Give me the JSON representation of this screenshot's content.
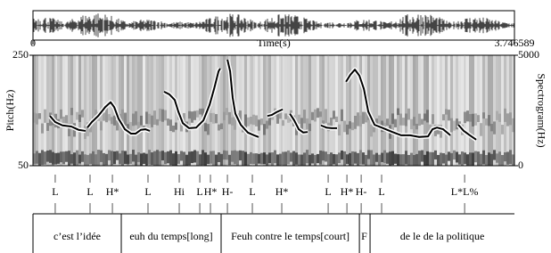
{
  "chart_data": {
    "type": "line",
    "xlabel": "Time(s)",
    "ylabel": "Pitch(Hz)",
    "y2label": "Spectrogram(Hz)",
    "xlim": [
      0,
      3.746589
    ],
    "xticks": [
      0,
      3.746589
    ],
    "ylim": [
      50,
      250
    ],
    "yticks": [
      50,
      250
    ],
    "y2lim": [
      0,
      5000
    ],
    "y2ticks": [
      0,
      5000
    ],
    "color": "#000000",
    "x": [
      0.132,
      0.173,
      0.229,
      0.298,
      0.354,
      0.409,
      null,
      0.423,
      0.458,
      0.507,
      0.562,
      0.604,
      0.632,
      0.666,
      0.715,
      0.763,
      0.798,
      0.84,
      0.874,
      0.909,
      null,
      1.02,
      1.062,
      1.103,
      1.131,
      1.166,
      1.214,
      1.27,
      1.326,
      1.374,
      1.409,
      1.444,
      1.457,
      null,
      1.513,
      1.534,
      1.554,
      1.575,
      1.617,
      1.672,
      1.721,
      1.756,
      null,
      1.825,
      1.86,
      1.895,
      1.943,
      null,
      1.999,
      2.033,
      2.068,
      2.103,
      2.137,
      null,
      2.241,
      2.283,
      2.325,
      2.366,
      null,
      2.436,
      2.471,
      2.505,
      2.54,
      2.575,
      2.609,
      2.658,
      2.713,
      2.797,
      2.866,
      2.935,
      3.005,
      3.074,
      3.109,
      3.144,
      3.192,
      3.248,
      null,
      3.31,
      3.352,
      3.4,
      3.449
    ],
    "values": [
      140,
      129,
      123,
      121,
      115,
      113,
      null,
      119,
      129,
      140,
      156,
      165,
      156,
      135,
      116,
      108,
      108,
      115,
      116,
      113,
      null,
      184,
      179,
      169,
      148,
      127,
      118,
      119,
      132,
      160,
      189,
      221,
      226,
      null,
      242,
      221,
      173,
      144,
      124,
      110,
      105,
      102,
      null,
      140,
      142,
      147,
      152,
      null,
      144,
      132,
      116,
      110,
      111,
      null,
      123,
      119,
      118,
      118,
      null,
      202,
      215,
      224,
      213,
      189,
      148,
      124,
      119,
      111,
      105,
      105,
      102,
      103,
      116,
      119,
      116,
      105,
      null,
      124,
      113,
      105,
      97
    ],
    "tones": [
      {
        "time": 0.173,
        "label": "L"
      },
      {
        "time": 0.444,
        "label": "L"
      },
      {
        "time": 0.618,
        "label": "H*"
      },
      {
        "time": 0.895,
        "label": "L"
      },
      {
        "time": 1.138,
        "label": "Hi"
      },
      {
        "time": 1.298,
        "label": "L"
      },
      {
        "time": 1.381,
        "label": "H*"
      },
      {
        "time": 1.513,
        "label": "H-"
      },
      {
        "time": 1.707,
        "label": "L"
      },
      {
        "time": 1.936,
        "label": "H*"
      },
      {
        "time": 2.297,
        "label": "L"
      },
      {
        "time": 2.443,
        "label": "H*"
      },
      {
        "time": 2.554,
        "label": "H-"
      },
      {
        "time": 2.713,
        "label": "L"
      },
      {
        "time": 3.359,
        "label": "L*L%"
      }
    ],
    "words": [
      {
        "start": 0,
        "end": 0.687,
        "label": "c’est l’idée"
      },
      {
        "start": 0.687,
        "end": 1.464,
        "label": "euh du temps[long]"
      },
      {
        "start": 1.464,
        "end": 2.54,
        "label": "Feuh contre le temps[court]"
      },
      {
        "start": 2.54,
        "end": 2.623,
        "label": "F"
      },
      {
        "start": 2.623,
        "end": 3.746589,
        "label": "de le de la politique"
      }
    ]
  }
}
